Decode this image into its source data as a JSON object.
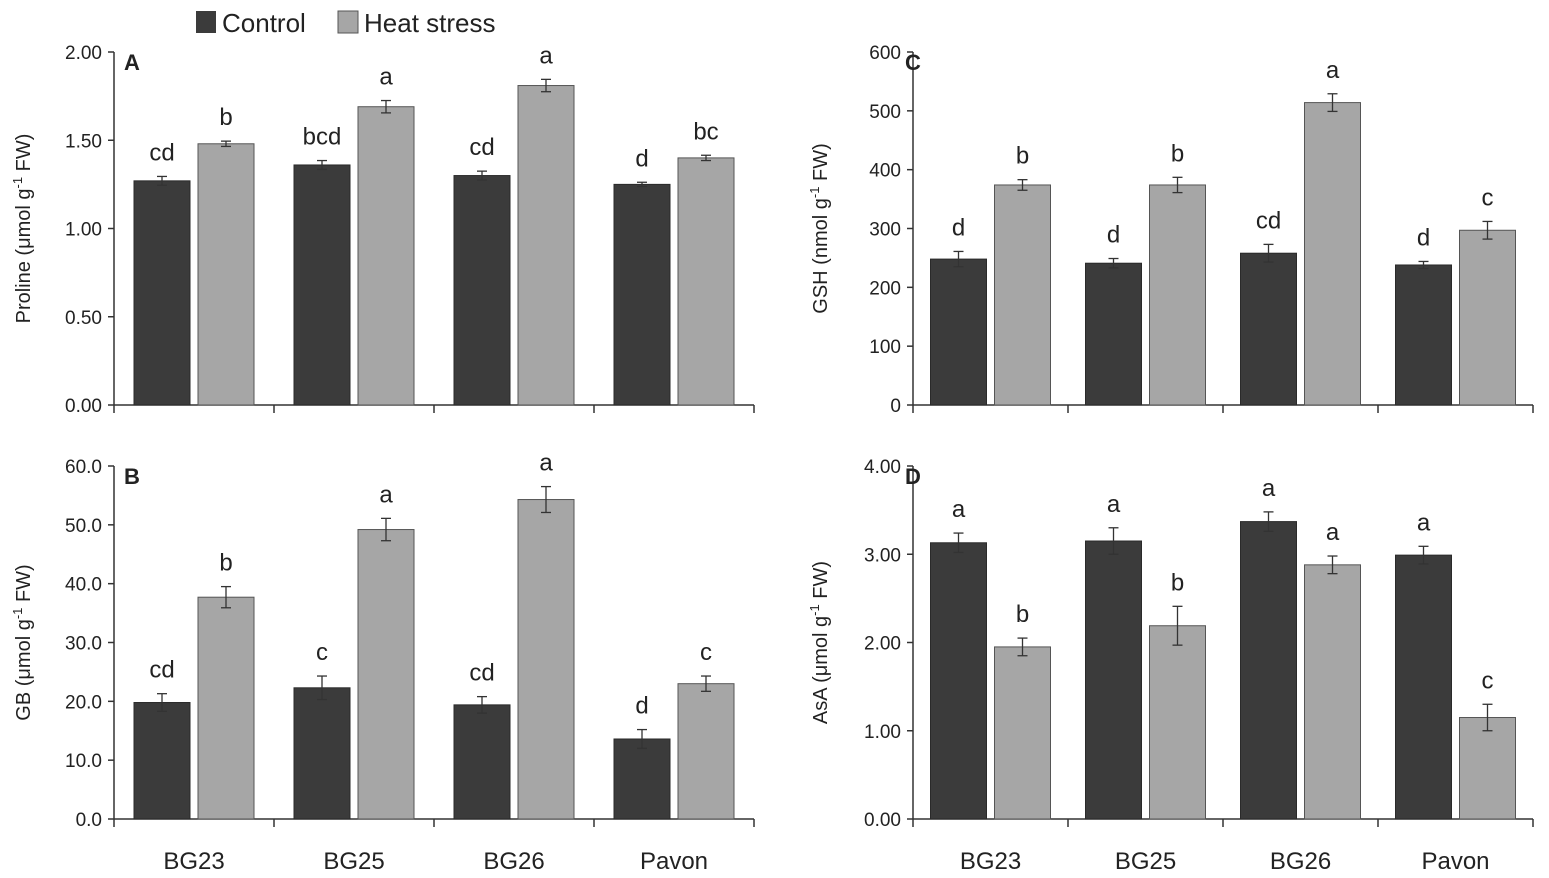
{
  "legend": {
    "control": "Control",
    "heat": "Heat stress"
  },
  "colors": {
    "control": "#3b3b3b",
    "heat": "#a6a6a6",
    "axis": "#333333"
  },
  "chart_data": [
    {
      "id": "A",
      "panel_label": "A",
      "type": "bar",
      "categories": [
        "BG23",
        "BG25",
        "BG26",
        "Pavon"
      ],
      "ylabel_main": "Proline (μmol g",
      "ylabel_sup": "-1",
      "ylabel_tail": " FW)",
      "ylim": [
        0,
        2
      ],
      "ytick_values": [
        0,
        0.5,
        1,
        1.5,
        2
      ],
      "ytick_labels": [
        "0.00",
        "0.50",
        "1.00",
        "1.50",
        "2.00"
      ],
      "series": [
        {
          "name": "Control",
          "values": [
            1.27,
            1.36,
            1.3,
            1.25
          ],
          "errors": [
            0.025,
            0.025,
            0.025,
            0.012
          ],
          "letters": [
            "cd",
            "bcd",
            "cd",
            "d"
          ]
        },
        {
          "name": "Heat stress",
          "values": [
            1.48,
            1.69,
            1.81,
            1.4
          ],
          "errors": [
            0.015,
            0.035,
            0.035,
            0.015
          ],
          "letters": [
            "b",
            "a",
            "a",
            "bc"
          ]
        }
      ]
    },
    {
      "id": "B",
      "panel_label": "B",
      "type": "bar",
      "categories": [
        "BG23",
        "BG25",
        "BG26",
        "Pavon"
      ],
      "ylabel_main": "GB (μmol g",
      "ylabel_sup": "-1",
      "ylabel_tail": " FW)",
      "ylim": [
        0,
        60
      ],
      "ytick_values": [
        0,
        10,
        20,
        30,
        40,
        50,
        60
      ],
      "ytick_labels": [
        "0.0",
        "10.0",
        "20.0",
        "30.0",
        "40.0",
        "50.0",
        "60.0"
      ],
      "series": [
        {
          "name": "Control",
          "values": [
            19.8,
            22.3,
            19.4,
            13.6
          ],
          "errors": [
            1.5,
            2.0,
            1.4,
            1.6
          ],
          "letters": [
            "cd",
            "c",
            "cd",
            "d"
          ]
        },
        {
          "name": "Heat stress",
          "values": [
            37.7,
            49.2,
            54.3,
            23.0
          ],
          "errors": [
            1.8,
            1.9,
            2.2,
            1.3
          ],
          "letters": [
            "b",
            "a",
            "a",
            "c"
          ]
        }
      ]
    },
    {
      "id": "C",
      "panel_label": "C",
      "type": "bar",
      "categories": [
        "BG23",
        "BG25",
        "BG26",
        "Pavon"
      ],
      "ylabel_main": "GSH (nmol g",
      "ylabel_sup": "-1",
      "ylabel_tail": " FW)",
      "ylim": [
        0,
        600
      ],
      "ytick_values": [
        0,
        100,
        200,
        300,
        400,
        500,
        600
      ],
      "ytick_labels": [
        "0",
        "100",
        "200",
        "300",
        "400",
        "500",
        "600"
      ],
      "series": [
        {
          "name": "Control",
          "values": [
            248,
            241,
            258,
            238
          ],
          "errors": [
            13,
            8,
            15,
            6
          ],
          "letters": [
            "d",
            "d",
            "cd",
            "d"
          ]
        },
        {
          "name": "Heat stress",
          "values": [
            374,
            374,
            514,
            297
          ],
          "errors": [
            9,
            13,
            15,
            15
          ],
          "letters": [
            "b",
            "b",
            "a",
            "c"
          ]
        }
      ]
    },
    {
      "id": "D",
      "panel_label": "D",
      "type": "bar",
      "categories": [
        "BG23",
        "BG25",
        "BG26",
        "Pavon"
      ],
      "ylabel_main": "AsA (μmol g",
      "ylabel_sup": "-1",
      "ylabel_tail": " FW)",
      "ylim": [
        0,
        4
      ],
      "ytick_values": [
        0,
        1,
        2,
        3,
        4
      ],
      "ytick_labels": [
        "0.00",
        "1.00",
        "2.00",
        "3.00",
        "4.00"
      ],
      "series": [
        {
          "name": "Control",
          "values": [
            3.13,
            3.15,
            3.37,
            2.99
          ],
          "errors": [
            0.11,
            0.15,
            0.11,
            0.1
          ],
          "letters": [
            "a",
            "a",
            "a",
            "a"
          ]
        },
        {
          "name": "Heat stress",
          "values": [
            1.95,
            2.19,
            2.88,
            1.15
          ],
          "errors": [
            0.1,
            0.22,
            0.1,
            0.15
          ],
          "letters": [
            "b",
            "b",
            "a",
            "c"
          ]
        }
      ]
    }
  ]
}
